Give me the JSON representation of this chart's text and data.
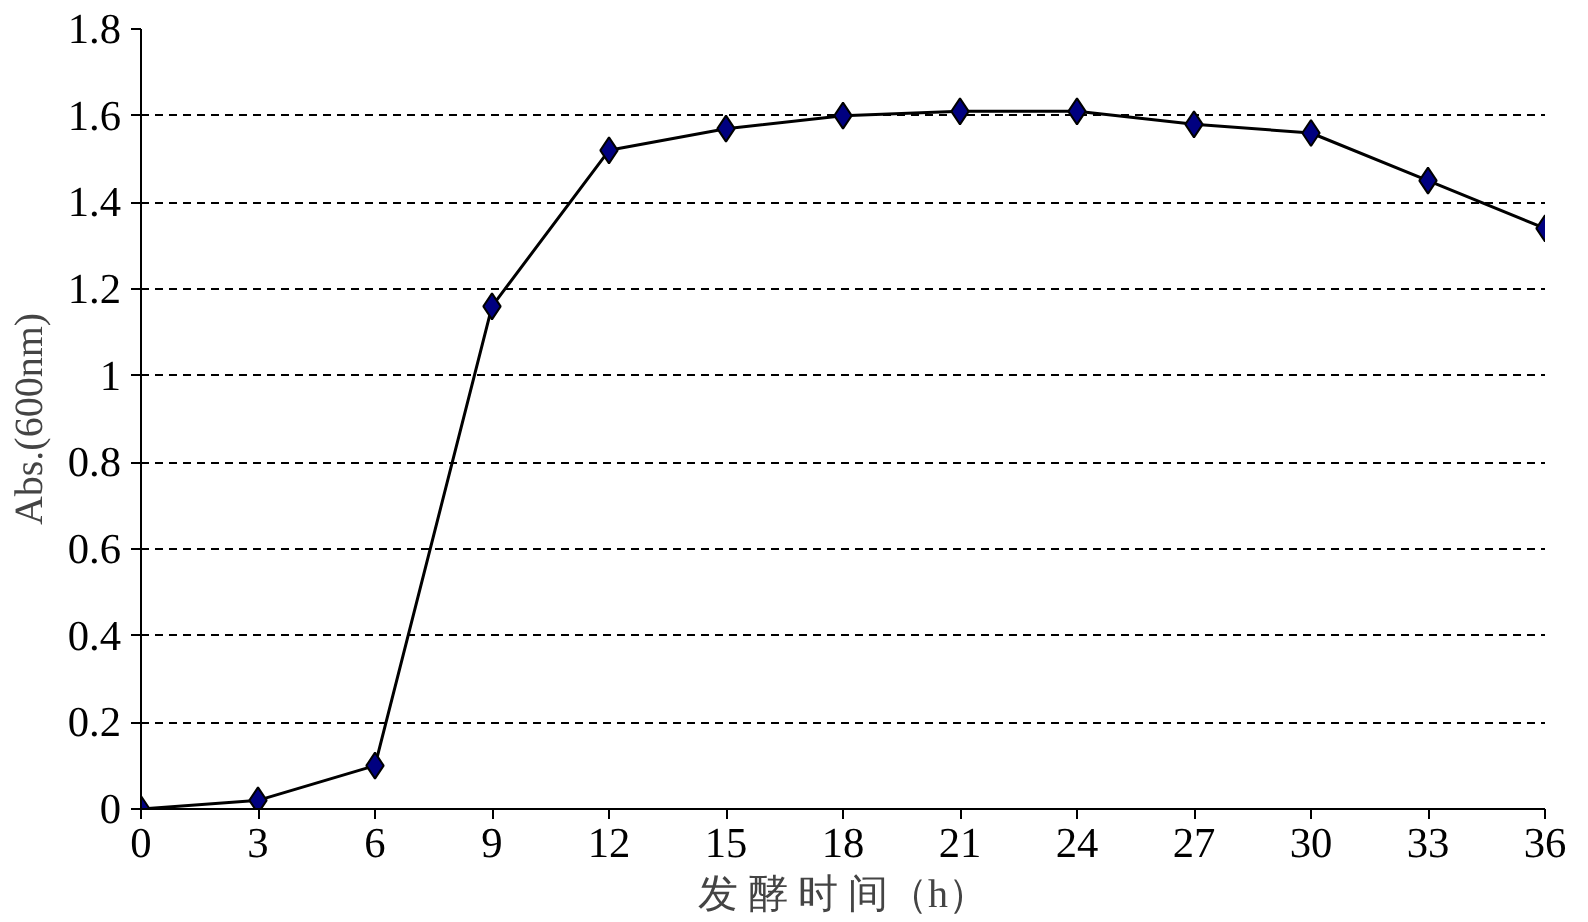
{
  "chart_data": {
    "type": "line",
    "xlabel": "发 酵 时 间（h）",
    "ylabel": "Abs.(600nm)",
    "x": [
      0,
      3,
      6,
      9,
      12,
      15,
      18,
      21,
      24,
      27,
      30,
      33,
      36
    ],
    "series": [
      {
        "color": "#000080",
        "values": [
          0,
          0.02,
          0.1,
          1.16,
          1.52,
          1.57,
          1.6,
          1.61,
          1.61,
          1.58,
          1.56,
          1.45,
          1.34
        ]
      }
    ],
    "xlim": [
      0,
      36
    ],
    "xticks": [
      0,
      3,
      6,
      9,
      12,
      15,
      18,
      21,
      24,
      27,
      30,
      33,
      36
    ],
    "ylim": [
      0,
      1.8
    ],
    "yticks": [
      0,
      {
        "value": 0.2,
        "label": "0.2"
      },
      {
        "value": 0.4,
        "label": "0.4"
      },
      {
        "value": 0.6,
        "label": "0.6"
      },
      {
        "value": 0.8,
        "label": "0.8"
      },
      1,
      {
        "value": 1.2,
        "label": "1.2"
      },
      {
        "value": 1.4,
        "label": "1.4"
      },
      {
        "value": 1.6,
        "label": "1.6"
      },
      {
        "value": 1.8,
        "label": "1.8"
      }
    ],
    "grid": "y",
    "marker": "diamond",
    "line_style": "solid"
  }
}
